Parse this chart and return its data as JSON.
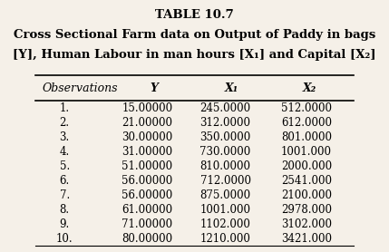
{
  "title_line1": "TABLE 10.7",
  "title_line2": "Cross Sectional Farm data on Output of Paddy in bags",
  "title_line3": "[Y], Human Labour in man hours [X₁] and Capital [X₂]",
  "col_headers": [
    "Observations",
    "Y",
    "X₁",
    "X₂"
  ],
  "rows": [
    [
      "1.",
      "15.00000",
      "245.0000",
      "512.0000"
    ],
    [
      "2.",
      "21.00000",
      "312.0000",
      "612.0000"
    ],
    [
      "3.",
      "30.00000",
      "350.0000",
      "801.0000"
    ],
    [
      "4.",
      "31.00000",
      "730.0000",
      "1001.000"
    ],
    [
      "5.",
      "51.00000",
      "810.0000",
      "2000.000"
    ],
    [
      "6.",
      "56.00000",
      "712.0000",
      "2541.000"
    ],
    [
      "7.",
      "56.00000",
      "875.0000",
      "2100.000"
    ],
    [
      "8.",
      "61.00000",
      "1001.000",
      "2978.000"
    ],
    [
      "9.",
      "71.00000",
      "1102.000",
      "3102.000"
    ],
    [
      "10.",
      "80.00000",
      "1210.000",
      "3421.000"
    ]
  ],
  "bg_color": "#f5f0e8",
  "title_fontsize": 9.5,
  "header_fontsize": 9,
  "data_fontsize": 8.5
}
